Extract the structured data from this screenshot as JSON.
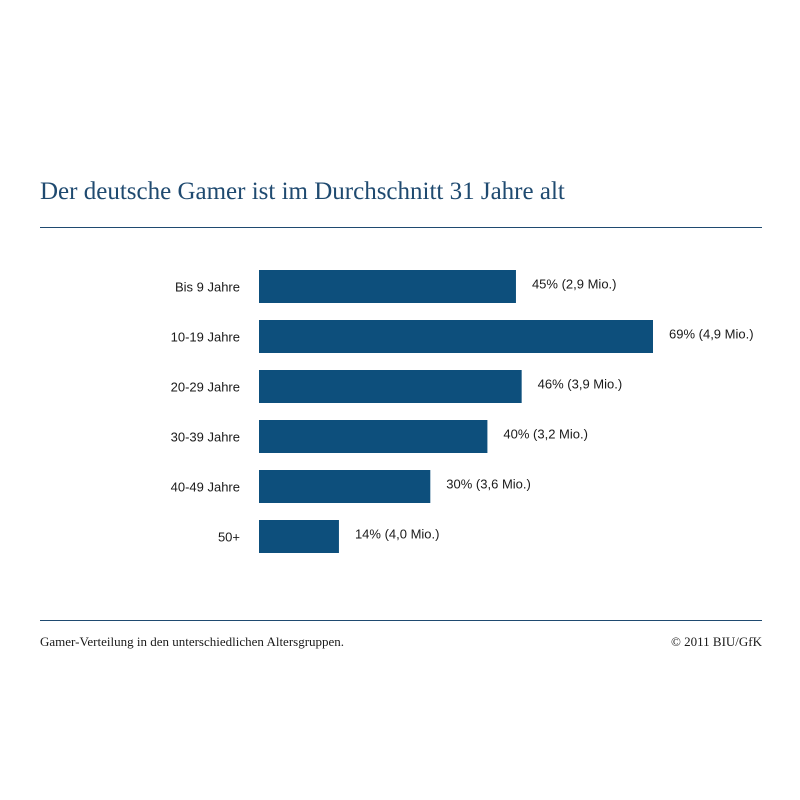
{
  "chart_data": {
    "type": "bar",
    "orientation": "horizontal",
    "title": "Der deutsche Gamer ist im Durchschnitt 31 Jahre alt",
    "categories": [
      "Bis 9 Jahre",
      "10-19 Jahre",
      "20-29 Jahre",
      "30-39 Jahre",
      "40-49 Jahre",
      "50+"
    ],
    "values": [
      45,
      69,
      46,
      40,
      30,
      14
    ],
    "value_unit": "%",
    "data_labels": [
      "45% (2,9 Mio.)",
      "69% (4,9 Mio.)",
      "46% (3,9 Mio.)",
      "40% (3,2 Mio.)",
      "30% (3,6 Mio.)",
      "14% (4,0 Mio.)"
    ],
    "xlim": [
      0,
      69
    ],
    "grid": false,
    "axes_visible": false,
    "bar_color": "#0d4f7c"
  },
  "footer": {
    "caption": "Gamer-Verteilung in den unterschiedlichen Altersgruppen.",
    "copyright": "© 2011 BIU/GfK"
  },
  "colors": {
    "title": "#1f4a70",
    "rule": "#1f4a70",
    "bar": "#0d4f7c"
  }
}
